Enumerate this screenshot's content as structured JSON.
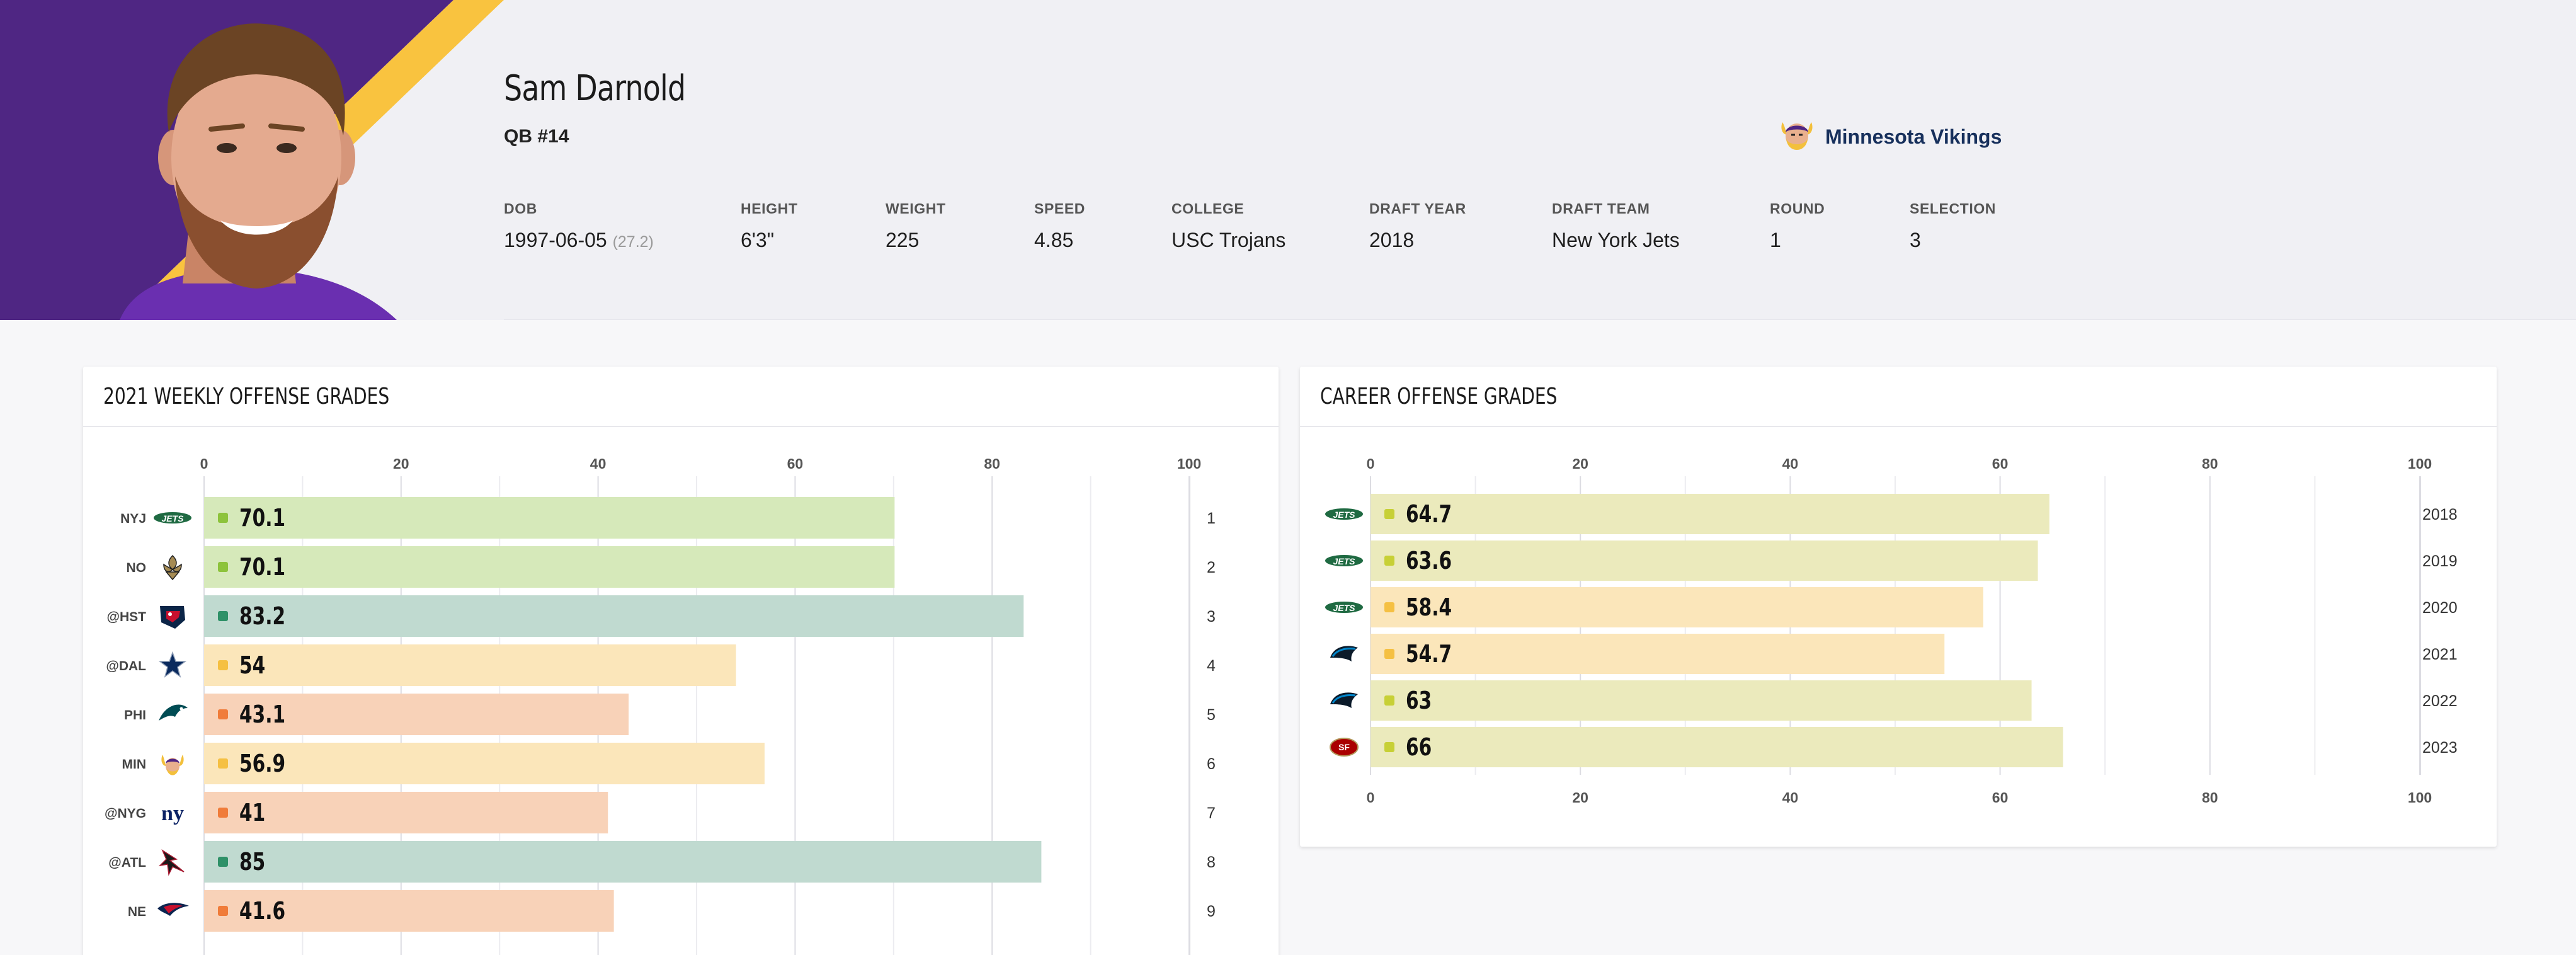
{
  "player": {
    "name": "Sam Darnold",
    "position": "QB #14",
    "team": "Minnesota Vikings"
  },
  "stats": [
    {
      "label": "DOB",
      "value": "1997-06-05",
      "note": "(27.2)"
    },
    {
      "label": "HEIGHT",
      "value": "6'3\""
    },
    {
      "label": "WEIGHT",
      "value": "225"
    },
    {
      "label": "SPEED",
      "value": "4.85"
    },
    {
      "label": "COLLEGE",
      "value": "USC Trojans"
    },
    {
      "label": "DRAFT YEAR",
      "value": "2018"
    },
    {
      "label": "DRAFT TEAM",
      "value": "New York Jets"
    },
    {
      "label": "ROUND",
      "value": "1"
    },
    {
      "label": "SELECTION",
      "value": "3"
    }
  ],
  "colors": {
    "vikings_purple": "#4f2683",
    "vikings_gold": "#f9c33f",
    "grade_green": "#8dc33c",
    "grade_yellowgreen": "#c7d036",
    "grade_teal": "#2f9168",
    "grade_yellow": "#f5c042",
    "grade_orange": "#f07c3a"
  },
  "chart_data": [
    {
      "type": "bar",
      "title": "2021 WEEKLY OFFENSE GRADES",
      "orientation": "horizontal",
      "xlim": [
        0,
        100
      ],
      "xticks": [
        0,
        20,
        40,
        60,
        80,
        100
      ],
      "categories": [
        "NYJ",
        "NO",
        "@HST",
        "@DAL",
        "PHI",
        "MIN",
        "@NYG",
        "@ATL",
        "NE"
      ],
      "team_icons": [
        "jets-logo-icon",
        "saints-logo-icon",
        "texans-logo-icon",
        "cowboys-logo-icon",
        "eagles-logo-icon",
        "vikings-logo-icon",
        "giants-logo-icon",
        "falcons-logo-icon",
        "patriots-logo-icon"
      ],
      "weeks": [
        "1",
        "2",
        "3",
        "4",
        "5",
        "6",
        "7",
        "8",
        "9"
      ],
      "values": [
        70.1,
        70.1,
        83.2,
        54,
        43.1,
        56.9,
        41,
        85,
        41.6
      ],
      "labels": [
        "70.1",
        "70.1",
        "83.2",
        "54",
        "43.1",
        "56.9",
        "41",
        "85",
        "41.6"
      ],
      "grades": [
        "green",
        "green",
        "teal",
        "yellow",
        "orange",
        "yellow",
        "orange",
        "teal",
        "orange"
      ],
      "grid": true
    },
    {
      "type": "bar",
      "title": "CAREER OFFENSE GRADES",
      "orientation": "horizontal",
      "xlim": [
        0,
        100
      ],
      "xticks": [
        0,
        20,
        40,
        60,
        80,
        100
      ],
      "team_icons": [
        "jets-logo-icon",
        "jets-logo-icon",
        "jets-logo-icon",
        "panthers-logo-icon",
        "panthers-logo-icon",
        "49ers-logo-icon"
      ],
      "years": [
        "2018",
        "2019",
        "2020",
        "2021",
        "2022",
        "2023"
      ],
      "values": [
        64.7,
        63.6,
        58.4,
        54.7,
        63,
        66
      ],
      "labels": [
        "64.7",
        "63.6",
        "58.4",
        "54.7",
        "63",
        "66"
      ],
      "grades": [
        "yellowgreen",
        "yellowgreen",
        "yellow",
        "yellow",
        "yellowgreen",
        "yellowgreen"
      ],
      "grid": true
    }
  ]
}
